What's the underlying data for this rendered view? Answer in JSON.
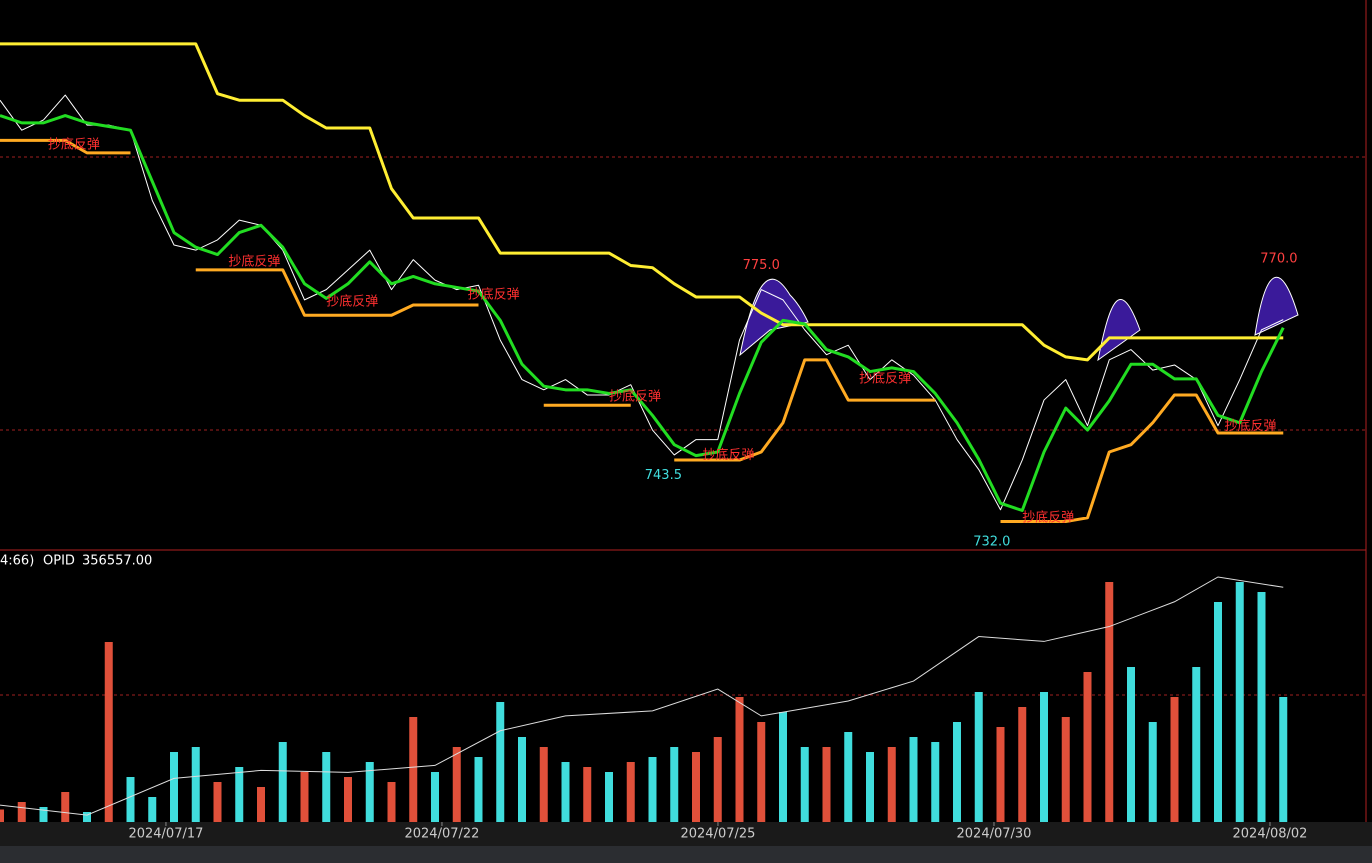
{
  "chart_data": {
    "type": "line",
    "x": [
      0,
      1,
      2,
      3,
      4,
      5,
      6,
      7,
      8,
      9,
      10,
      11,
      12,
      13,
      14,
      15,
      16,
      17,
      18,
      19,
      20,
      21,
      22,
      23,
      24,
      25,
      26,
      27,
      28,
      29,
      30,
      31,
      32,
      33,
      34,
      35,
      36,
      37,
      38,
      39,
      40,
      41,
      42,
      43,
      44,
      45,
      46,
      47,
      48,
      49,
      50,
      51,
      52,
      53,
      54,
      55,
      56,
      57,
      58,
      59
    ],
    "xlim": [
      0,
      60
    ],
    "xticks": [
      {
        "value": 7.63,
        "label": "2024/07/17"
      },
      {
        "value": 20.32,
        "label": "2024/07/22"
      },
      {
        "value": 33.01,
        "label": "2024/07/25"
      },
      {
        "value": 45.7,
        "label": "2024/07/30"
      },
      {
        "value": 58.39,
        "label": "2024/08/02"
      }
    ],
    "ylim": [
      730.6,
      801.7
    ],
    "series": [
      {
        "color": "#ffffff",
        "values": [
          792.1,
          788,
          789.4,
          792.8,
          788.7,
          788.7,
          788,
          778.4,
          772.3,
          771.6,
          773,
          775.7,
          775,
          771.6,
          764.8,
          766.2,
          768.9,
          771.6,
          766.2,
          770.3,
          767.5,
          766.2,
          766.8,
          759.3,
          753.9,
          752.5,
          753.9,
          751.8,
          751.8,
          753.2,
          747,
          743.6,
          745.7,
          745.7,
          759.3,
          766.2,
          764.8,
          760.7,
          757.3,
          758.6,
          753.9,
          756.6,
          754.5,
          751.1,
          745.7,
          741.6,
          736.1,
          742.9,
          751.1,
          753.9,
          747.6,
          756.6,
          758,
          755.2,
          755.9,
          753.9,
          747.6,
          753.9,
          760.7,
          762.1
        ]
      },
      {
        "color": "#ffee33",
        "values": [
          799.8,
          799.8,
          799.8,
          799.8,
          799.8,
          799.8,
          799.8,
          799.8,
          799.8,
          799.8,
          793,
          792.1,
          792.1,
          792.1,
          790,
          788.3,
          788.3,
          788.3,
          780,
          776,
          776,
          776,
          776,
          771.2,
          771.2,
          771.2,
          771.2,
          771.2,
          771.2,
          769.5,
          769.2,
          767,
          765.2,
          765.2,
          765.2,
          763,
          761.4,
          761.4,
          761.4,
          761.4,
          761.4,
          761.4,
          761.4,
          761.4,
          761.4,
          761.4,
          761.4,
          761.4,
          758.6,
          757,
          756.6,
          759.6,
          759.6,
          759.6,
          759.6,
          759.6,
          759.6,
          759.6,
          759.6,
          759.6
        ]
      },
      {
        "color": "#ffaa22",
        "values": [
          786.6,
          786.6,
          786.6,
          786.6,
          784.9,
          784.9,
          784.9,
          null,
          null,
          768.9,
          768.9,
          768.9,
          768.9,
          768.9,
          762.7,
          762.7,
          762.7,
          762.7,
          762.7,
          764.1,
          764.1,
          764.1,
          764.1,
          null,
          null,
          750.4,
          750.4,
          750.4,
          750.4,
          750.4,
          null,
          742.9,
          742.9,
          742.9,
          742.9,
          744,
          748,
          756.6,
          756.6,
          751.1,
          751.1,
          751.1,
          751.1,
          751.1,
          null,
          null,
          734.5,
          734.5,
          734.5,
          734.5,
          735,
          744,
          745,
          748,
          751.8,
          751.8,
          746.6,
          746.6,
          746.6,
          746.6
        ]
      },
      {
        "color": "#22dd22",
        "values": [
          790,
          789,
          789,
          790,
          789,
          788.5,
          788,
          781,
          774,
          772,
          771,
          774,
          775,
          772,
          767,
          765,
          767,
          770,
          767,
          768,
          767,
          766.5,
          766,
          762,
          756,
          753,
          752.5,
          752.5,
          752,
          752.5,
          749,
          745,
          743.5,
          744,
          752,
          759,
          762,
          761.5,
          758,
          757,
          755,
          755.5,
          755,
          752,
          748,
          743,
          737,
          736,
          744,
          750,
          747,
          751,
          756,
          756,
          754,
          754,
          749,
          748,
          755,
          761
        ]
      }
    ],
    "annotations": [
      {
        "text": "抄底反弹",
        "x": 2.2,
        "y": 786
      },
      {
        "text": "抄底反弹",
        "x": 10.5,
        "y": 770
      },
      {
        "text": "抄底反弹",
        "x": 15,
        "y": 764.5
      },
      {
        "text": "抄底反弹",
        "x": 21.5,
        "y": 765.5
      },
      {
        "text": "抄底反弹",
        "x": 28,
        "y": 751.5
      },
      {
        "text": "抄底反弹",
        "x": 32.3,
        "y": 743.5
      },
      {
        "text": "抄底反弹",
        "x": 39.5,
        "y": 754
      },
      {
        "text": "抄底反弹",
        "x": 47,
        "y": 735
      },
      {
        "text": "抄底反弹",
        "x": 56.3,
        "y": 747.5
      },
      {
        "text": "743.5",
        "x": 30.5,
        "y": 740.8
      },
      {
        "text": "732.0",
        "x": 45.6,
        "y": 731.7
      },
      {
        "text": "775.0",
        "x": 35,
        "y": 769.5
      },
      {
        "text": "770.0",
        "x": 58.8,
        "y": 770.4
      }
    ],
    "volume": {
      "ylim": [
        0,
        100
      ],
      "values": [
        5,
        8,
        6,
        12,
        4,
        72,
        18,
        10,
        28,
        30,
        16,
        22,
        14,
        32,
        20,
        28,
        18,
        24,
        16,
        42,
        20,
        30,
        26,
        48,
        34,
        30,
        24,
        22,
        20,
        24,
        26,
        30,
        28,
        34,
        50,
        40,
        44,
        30,
        30,
        36,
        28,
        30,
        34,
        32,
        40,
        52,
        38,
        46,
        52,
        42,
        60,
        96,
        62,
        40,
        50,
        62,
        88,
        96,
        92,
        50
      ],
      "colors": [
        "#e0503a",
        "#e0503a",
        "#40dddd",
        "#e0503a",
        "#40dddd",
        "#e0503a",
        "#40dddd",
        "#40dddd",
        "#40dddd",
        "#40dddd",
        "#e0503a",
        "#40dddd",
        "#e0503a",
        "#40dddd",
        "#e0503a",
        "#40dddd",
        "#e0503a",
        "#40dddd",
        "#e0503a",
        "#e0503a",
        "#40dddd",
        "#e0503a",
        "#40dddd",
        "#40dddd",
        "#40dddd",
        "#e0503a",
        "#40dddd",
        "#e0503a",
        "#40dddd",
        "#e0503a",
        "#40dddd",
        "#40dddd",
        "#e0503a",
        "#e0503a",
        "#e0503a",
        "#e0503a",
        "#40dddd",
        "#40dddd",
        "#e0503a",
        "#40dddd",
        "#40dddd",
        "#e0503a",
        "#40dddd",
        "#40dddd",
        "#40dddd",
        "#40dddd",
        "#e0503a",
        "#e0503a",
        "#40dddd",
        "#e0503a",
        "#e0503a",
        "#e0503a",
        "#40dddd",
        "#40dddd",
        "#e0503a",
        "#40dddd",
        "#40dddd",
        "#40dddd",
        "#40dddd",
        "#40dddd"
      ]
    },
    "opid": {
      "prefix": "4:66)",
      "name": "OPID",
      "value_label": "356557.00",
      "ylim": [
        150000,
        370000
      ],
      "x": [
        0,
        4,
        8,
        12,
        16,
        20,
        23,
        26,
        30,
        33,
        35,
        39,
        42,
        45,
        48,
        51,
        54,
        56,
        59
      ],
      "values": [
        164800,
        156100,
        188400,
        195400,
        193700,
        199800,
        230300,
        243400,
        247800,
        267000,
        243400,
        256500,
        274000,
        313200,
        308900,
        322000,
        343800,
        365600,
        356557
      ]
    }
  }
}
